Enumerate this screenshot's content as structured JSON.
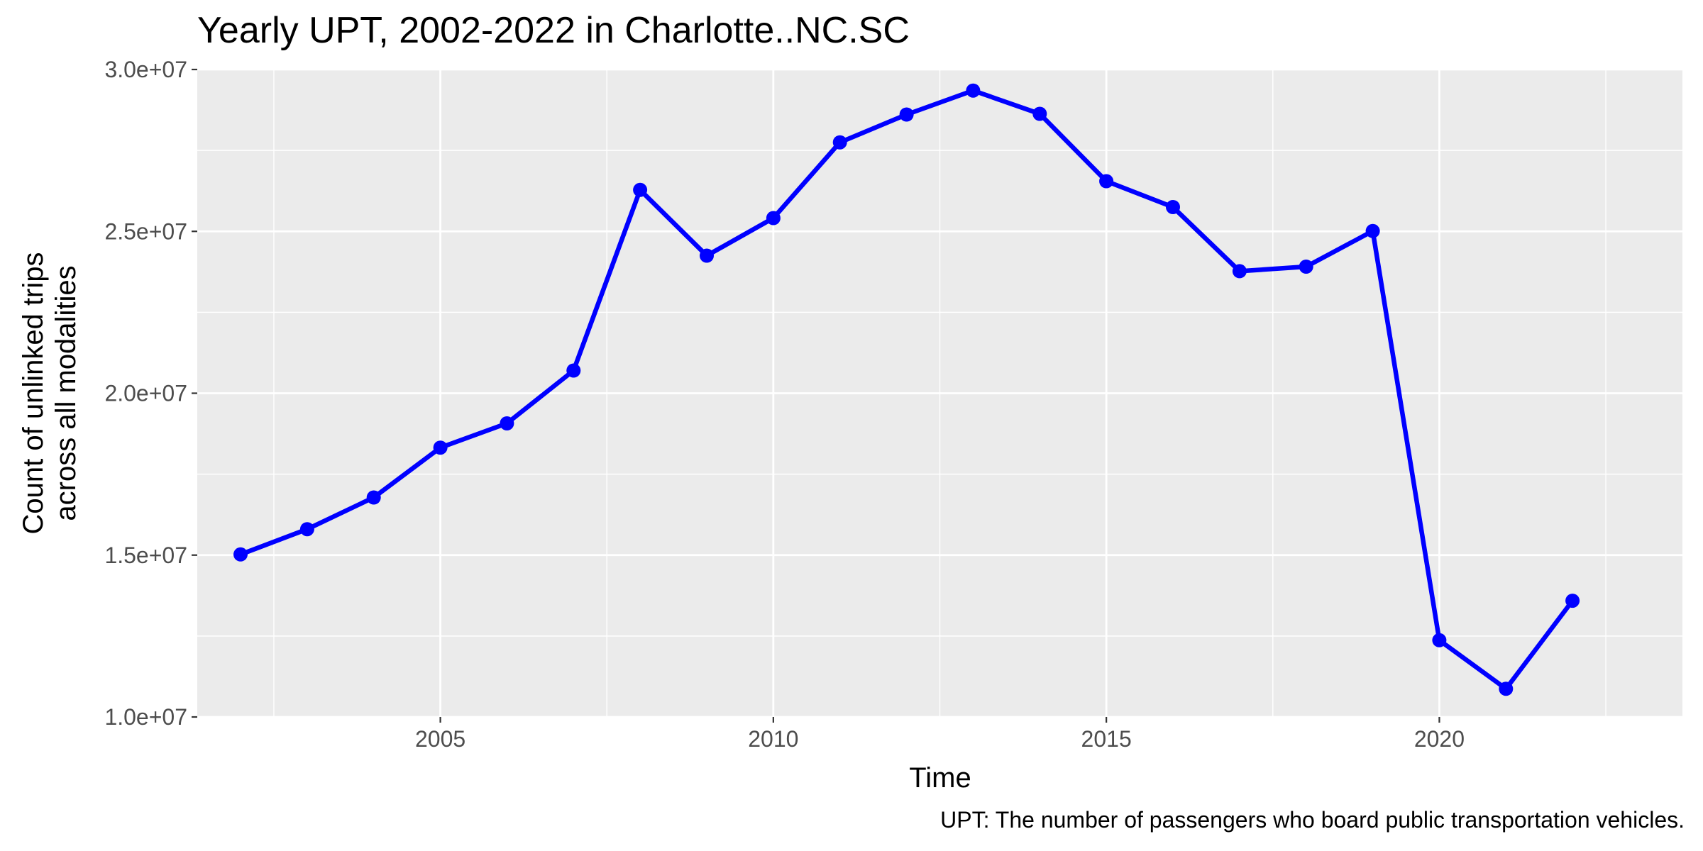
{
  "chart_data": {
    "type": "line",
    "title": "Yearly UPT, 2002-2022 in Charlotte..NC.SC",
    "xlabel": "Time",
    "ylabel_lines": [
      "Count of unlinked trips",
      "across all modalities"
    ],
    "caption": "UPT: The number of passengers who board public transportation vehicles.",
    "xlim": [
      2001.35,
      2023.65
    ],
    "ylim": [
      10000000,
      30000000
    ],
    "x_ticks": [
      2005,
      2010,
      2015,
      2020
    ],
    "x_tick_labels": [
      "2005",
      "2010",
      "2015",
      "2020"
    ],
    "y_ticks": [
      10000000,
      15000000,
      20000000,
      25000000,
      30000000
    ],
    "y_tick_labels": [
      "1.0e+07",
      "1.5e+07",
      "2.0e+07",
      "2.5e+07",
      "3.0e+07"
    ],
    "grid": true,
    "series": [
      {
        "color": "#0000ff",
        "x": [
          2002,
          2003,
          2004,
          2005,
          2006,
          2007,
          2008,
          2009,
          2010,
          2011,
          2012,
          2013,
          2014,
          2015,
          2016,
          2017,
          2018,
          2019,
          2020,
          2021,
          2022
        ],
        "y": [
          15020000,
          15800000,
          16780000,
          18320000,
          19070000,
          20700000,
          26280000,
          24250000,
          25410000,
          27750000,
          28610000,
          29350000,
          28630000,
          26550000,
          25750000,
          23770000,
          23910000,
          25010000,
          12370000,
          10870000,
          13590000
        ]
      }
    ],
    "colors": {
      "panel_background": "#ebebeb",
      "grid_line": "#ffffff",
      "tick_label": "#4d4d4d",
      "tick_mark": "#333333"
    }
  }
}
